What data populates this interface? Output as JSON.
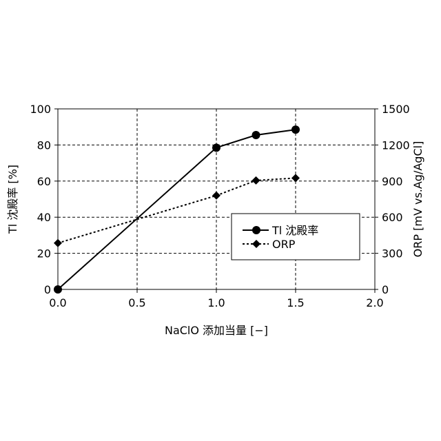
{
  "chart_data": {
    "type": "line",
    "xlabel": "NaClO 添加当量 [−]",
    "ylabel": "Tl 沈殿率 [%]",
    "y2label": "ORP [mV vs.Ag/AgCl]",
    "xlim": [
      0,
      2
    ],
    "ylim": [
      0,
      100
    ],
    "y2lim": [
      0,
      1500
    ],
    "x_ticks": [
      "0.0",
      "0.5",
      "1.0",
      "1.5",
      "2.0"
    ],
    "y_ticks": [
      "0",
      "20",
      "40",
      "60",
      "80",
      "100"
    ],
    "y2_ticks": [
      "0",
      "300",
      "600",
      "900",
      "1200",
      "1500"
    ],
    "grid": true,
    "legend_position": "lower-right",
    "series": [
      {
        "name": "Tl 沈殿率",
        "axis": "left",
        "line": "solid",
        "marker": "circle",
        "x": [
          0,
          1.0,
          1.25,
          1.5
        ],
        "y": [
          0,
          78.5,
          85.5,
          88.5
        ]
      },
      {
        "name": "ORP",
        "axis": "right",
        "line": "dotted",
        "marker": "diamond",
        "x": [
          0,
          1.0,
          1.25,
          1.5
        ],
        "y": [
          385,
          780,
          905,
          925
        ]
      }
    ]
  }
}
